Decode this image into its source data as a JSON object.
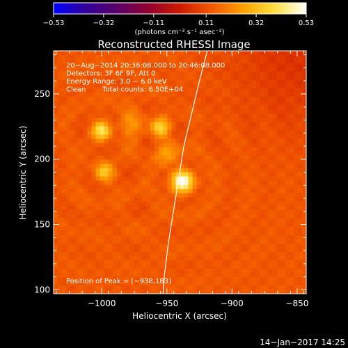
{
  "chart_data": {
    "type": "heatmap",
    "title": "Reconstructed RHESSI Image",
    "xlabel": "Heliocentric X (arcsec)",
    "ylabel": "Heliocentric Y (arcsec)",
    "xlim": [
      -1037,
      -843
    ],
    "ylim": [
      97,
      283
    ],
    "x_ticks": [
      -1000,
      -950,
      -900,
      -850
    ],
    "y_ticks": [
      100,
      150,
      200,
      250
    ],
    "x_tick_labels": [
      "−1000",
      "−950",
      "−900",
      "−850"
    ],
    "y_tick_labels": [
      "100",
      "150",
      "200",
      "250"
    ],
    "colorbar": {
      "min": -0.53,
      "max": 0.53,
      "ticks": [
        -0.53,
        -0.32,
        -0.11,
        0.11,
        0.32,
        0.53
      ],
      "tick_labels": [
        "−0.53",
        "−0.32",
        "−0.11",
        "0.11",
        "0.32",
        "0.53"
      ],
      "unit_label": "(photons cm⁻² s⁻¹ asec⁻²)",
      "stops": [
        "#0000ff",
        "#30009a",
        "#5a0068",
        "#900030",
        "#cc1a00",
        "#f25800",
        "#ffa000",
        "#ffe040",
        "#ffffff"
      ]
    },
    "background_level": 0.13,
    "sources": [
      {
        "name": "peak",
        "x": -938,
        "y": 183,
        "amplitude": 0.4,
        "sigma": 6
      },
      {
        "name": "upper-left",
        "x": -1000,
        "y": 222,
        "amplitude": 0.28,
        "sigma": 5
      },
      {
        "name": "upper-right",
        "x": -955,
        "y": 224,
        "amplitude": 0.24,
        "sigma": 5
      },
      {
        "name": "lower-left",
        "x": -998,
        "y": 190,
        "amplitude": 0.21,
        "sigma": 5
      },
      {
        "name": "connector-top",
        "x": -978,
        "y": 228,
        "amplitude": 0.1,
        "sigma": 7
      },
      {
        "name": "connector-right",
        "x": -950,
        "y": 205,
        "amplitude": 0.1,
        "sigma": 7
      }
    ],
    "limb": [
      [
        -919,
        283
      ],
      [
        -925,
        260
      ],
      [
        -931,
        235
      ],
      [
        -937,
        210
      ],
      [
        -941,
        185
      ],
      [
        -945,
        160
      ],
      [
        -949,
        135
      ],
      [
        -952,
        110
      ],
      [
        -953,
        97
      ]
    ],
    "annotations": [
      "20−Aug−2014 20:36:08.000 to 20:46:08.000",
      "Detectors: 3F 6F 9F, Att 0",
      "Energy Range: 3.0 − 6.0 keV",
      "Clean",
      "Total counts: 6.50E+04"
    ],
    "peak_label": "Position of Peak = [−938,183]"
  },
  "footer": {
    "timestamp": "14−Jan−2017 14:25"
  }
}
